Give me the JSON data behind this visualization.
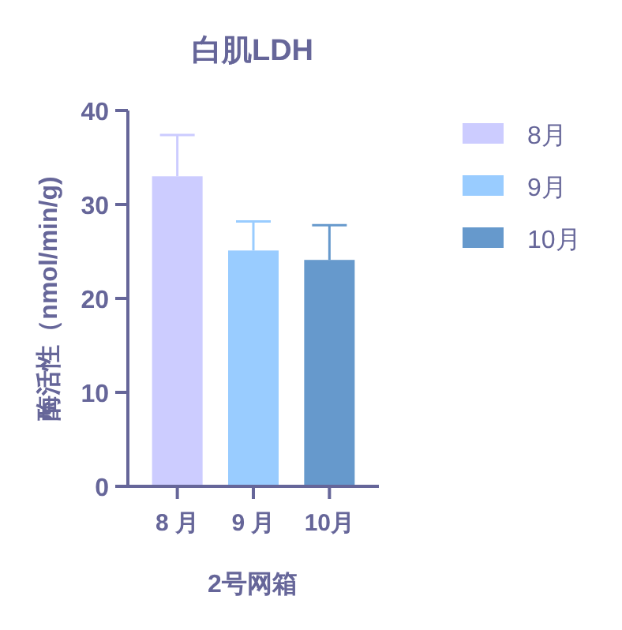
{
  "chart_data": {
    "type": "bar",
    "title": "白肌LDH",
    "xlabel": "2号网箱",
    "ylabel": "酶活性（nmol/min/g)",
    "categories": [
      "8 月",
      "9 月",
      "10月"
    ],
    "series": [
      {
        "name": "8月",
        "color": "#ccccff",
        "values": [
          33,
          null,
          null
        ],
        "errors": [
          4.4,
          null,
          null
        ]
      },
      {
        "name": "9月",
        "color": "#99ccff",
        "values": [
          null,
          25.1,
          null
        ],
        "errors": [
          null,
          3.1,
          null
        ]
      },
      {
        "name": "10月",
        "color": "#6699cc",
        "values": [
          null,
          null,
          24.1
        ],
        "errors": [
          null,
          null,
          3.7
        ]
      }
    ],
    "ylim": [
      0,
      40
    ],
    "yticks": [
      0,
      10,
      20,
      30,
      40
    ],
    "grid": false,
    "legend": "top right"
  }
}
